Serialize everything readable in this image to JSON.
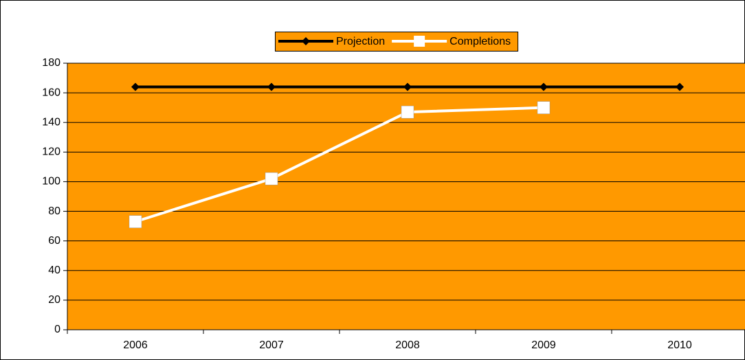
{
  "chart_data": {
    "type": "line",
    "categories": [
      "2006",
      "2007",
      "2008",
      "2009",
      "2010"
    ],
    "series": [
      {
        "name": "Projection",
        "color": "#000000",
        "marker": "diamond",
        "values": [
          164,
          164,
          164,
          164,
          164
        ]
      },
      {
        "name": "Completions",
        "color": "#ffffff",
        "marker": "square",
        "values": [
          73,
          102,
          147,
          150,
          null
        ]
      }
    ],
    "ylim": [
      0,
      180
    ],
    "yticks": [
      0,
      20,
      40,
      60,
      80,
      100,
      120,
      140,
      160,
      180
    ],
    "grid": true,
    "plot_background": "#ff9900",
    "legend": "top"
  }
}
